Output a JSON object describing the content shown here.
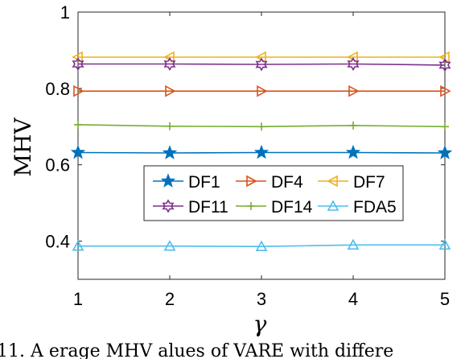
{
  "chart_data": {
    "type": "line",
    "title": "",
    "xlabel": "γ",
    "ylabel": "MHV",
    "x": [
      1,
      2,
      3,
      4,
      5
    ],
    "x_ticks": [
      "1",
      "2",
      "3",
      "4",
      "5"
    ],
    "y_ticks": [
      "0.4",
      "0.6",
      "0.8",
      "1"
    ],
    "xlim": [
      1,
      5
    ],
    "ylim": [
      0.3,
      1.0
    ],
    "grid": false,
    "legend_position": "center",
    "series": [
      {
        "name": "DF1",
        "marker": "star",
        "color": "#0072BD",
        "values": [
          0.632,
          0.631,
          0.632,
          0.632,
          0.631
        ]
      },
      {
        "name": "DF4",
        "marker": "triangle-right",
        "color": "#D95319",
        "values": [
          0.793,
          0.793,
          0.793,
          0.793,
          0.793
        ]
      },
      {
        "name": "DF7",
        "marker": "triangle-left",
        "color": "#EDB120",
        "values": [
          0.882,
          0.882,
          0.882,
          0.882,
          0.882
        ]
      },
      {
        "name": "DF11",
        "marker": "hexagram",
        "color": "#7E2F8E",
        "values": [
          0.864,
          0.864,
          0.863,
          0.864,
          0.861
        ]
      },
      {
        "name": "DF14",
        "marker": "plus",
        "color": "#77AC30",
        "values": [
          0.705,
          0.701,
          0.7,
          0.703,
          0.7
        ]
      },
      {
        "name": "FDA5",
        "marker": "triangle-up",
        "color": "#4DBEEE",
        "values": [
          0.387,
          0.387,
          0.386,
          0.39,
          0.39
        ]
      }
    ]
  },
  "caption": "11. A erage MHV  alues of VARE  with differe"
}
